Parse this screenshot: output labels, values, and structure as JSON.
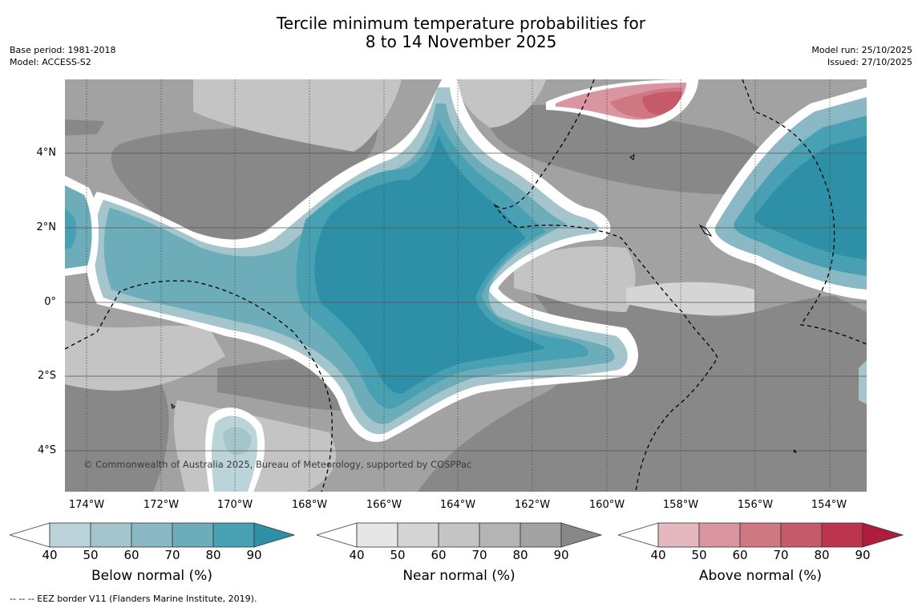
{
  "title": {
    "line1": "Tercile minimum temperature probabilities for",
    "line2": "8 to 14 November 2025"
  },
  "meta_left": {
    "base_period": "Base period: 1981-2018",
    "model": "Model: ACCESS-S2"
  },
  "meta_right": {
    "model_run": "Model run: 25/10/2025",
    "issued": "Issued: 27/10/2025"
  },
  "map": {
    "copyright": "© Commonwealth of Australia 2025, Bureau of Meteorology, supported by COSPPac",
    "lat_labels": [
      "4°N",
      "2°N",
      "0°",
      "2°S",
      "4°S"
    ],
    "lon_labels": [
      "174°W",
      "172°W",
      "170°W",
      "168°W",
      "166°W",
      "164°W",
      "162°W",
      "160°W",
      "158°W",
      "156°W",
      "154°W"
    ],
    "lat_range": [
      -5.0,
      6.0
    ],
    "lon_range": [
      -174.6,
      -153.0
    ]
  },
  "colorbars": [
    {
      "name": "Below normal (%)",
      "ticks": [
        "40",
        "50",
        "60",
        "70",
        "80",
        "90"
      ],
      "colors": [
        "#ffffff",
        "#bad4da",
        "#a3c5cb",
        "#8ab8c4",
        "#6cadb9",
        "#48a1b3",
        "#2e90a6"
      ]
    },
    {
      "name": "Near normal (%)",
      "ticks": [
        "40",
        "50",
        "60",
        "70",
        "80",
        "90"
      ],
      "colors": [
        "#ffffff",
        "#e6e6e6",
        "#d5d5d5",
        "#c4c4c4",
        "#b4b4b4",
        "#a2a2a2",
        "#888888"
      ]
    },
    {
      "name": "Above normal (%)",
      "ticks": [
        "40",
        "50",
        "60",
        "70",
        "80",
        "90"
      ],
      "colors": [
        "#ffffff",
        "#e3b8bf",
        "#da96a0",
        "#cf7883",
        "#c45a6a",
        "#bd344e",
        "#ae1d3c"
      ]
    }
  ],
  "footnote": "--  --  -- EEZ border V11 (Flanders Marine Institute, 2019)."
}
